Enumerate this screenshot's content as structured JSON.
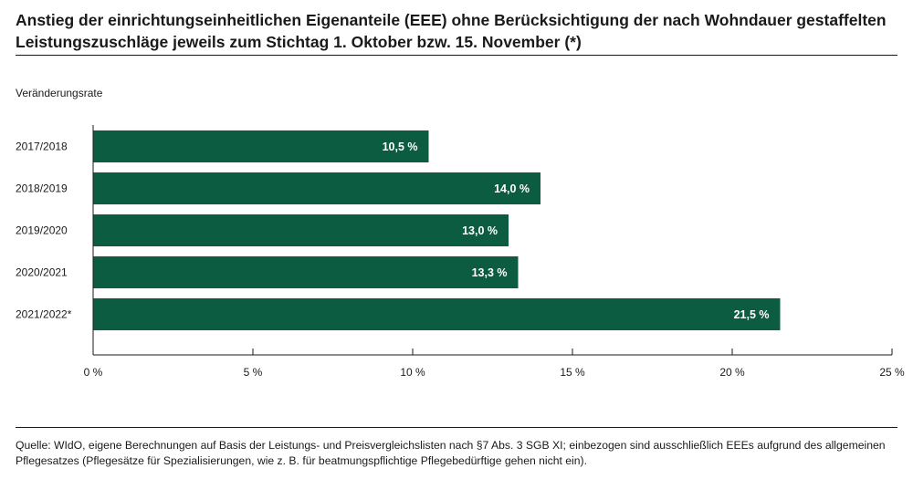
{
  "title": "Anstieg der einrichtungseinheitlichen Eigenanteile (EEE) ohne Berücksichtigung der nach Wohndauer gestaffelten Leistungszuschläge jeweils zum Stichtag 1. Oktober bzw. 15. November (*)",
  "source": "Quelle: WIdO, eigene Berechnungen auf Basis der Leistungs- und Preisvergleichslisten nach §7 Abs. 3 SGB XI; einbezogen sind ausschließlich EEEs aufgrund des allgemeinen Pflegesatzes (Pflegesätze für Spezialisierungen, wie z. B. für beatmungspflichtige Pflegebedürftige gehen nicht ein).",
  "chart_data": {
    "type": "bar",
    "orientation": "horizontal",
    "ylabel": "Veränderungsrate",
    "categories": [
      "2017/2018",
      "2018/2019",
      "2019/2020",
      "2020/2021",
      "2021/2022*"
    ],
    "values": [
      10.5,
      14.0,
      13.0,
      13.3,
      21.5
    ],
    "data_labels": [
      "10,5 %",
      "14,0 %",
      "13,0 %",
      "13,3 %",
      "21,5 %"
    ],
    "xlim": [
      0,
      25
    ],
    "xticks": [
      0,
      5,
      10,
      15,
      20,
      25
    ],
    "xtick_labels": [
      "0 %",
      "5 %",
      "10 %",
      "15 %",
      "20 %",
      "25 %"
    ],
    "grid": false,
    "bar_color": "#0b5c40",
    "label_color": "#ffffff"
  }
}
